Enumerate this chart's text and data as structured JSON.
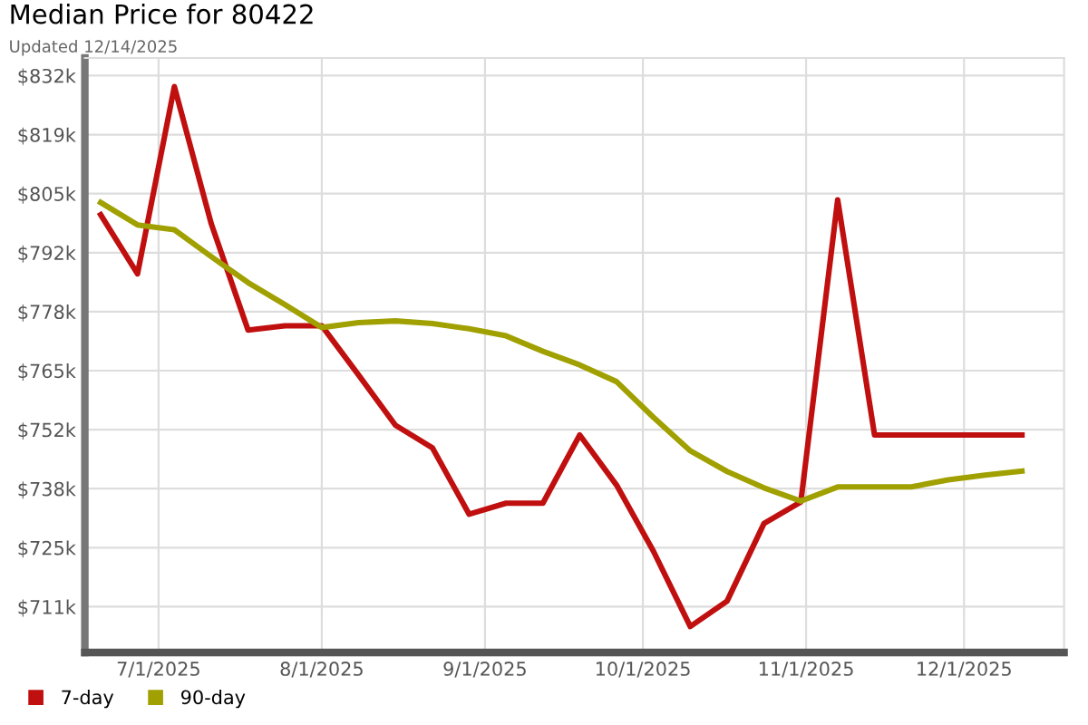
{
  "chart_data": {
    "type": "line",
    "title": "Median Price for 80422",
    "subtitle": "Updated 12/14/2025",
    "x": [
      "2025-06-20",
      "2025-06-27",
      "2025-07-04",
      "2025-07-11",
      "2025-07-18",
      "2025-07-25",
      "2025-08-01",
      "2025-08-08",
      "2025-08-15",
      "2025-08-22",
      "2025-08-29",
      "2025-09-05",
      "2025-09-12",
      "2025-09-19",
      "2025-09-26",
      "2025-10-03",
      "2025-10-10",
      "2025-10-17",
      "2025-10-24",
      "2025-10-31",
      "2025-11-07",
      "2025-11-14",
      "2025-11-21",
      "2025-11-28",
      "2025-12-05",
      "2025-12-12"
    ],
    "series": [
      {
        "name": "7-day",
        "color": "#c00f0f",
        "values": [
          800.4,
          787.0,
          829.5,
          798.4,
          774.2,
          775.2,
          775.2,
          764.0,
          752.6,
          747.5,
          732.4,
          734.9,
          734.9,
          750.4,
          739.0,
          724.0,
          706.9,
          712.7,
          730.3,
          735.2,
          803.8,
          750.4,
          750.4,
          750.4,
          750.4,
          750.4
        ]
      },
      {
        "name": "90-day",
        "color": "#a0a000",
        "values": [
          803.2,
          798.1,
          797.0,
          790.9,
          785.0,
          780.0,
          774.8,
          775.9,
          776.3,
          775.7,
          774.5,
          772.9,
          769.4,
          766.3,
          762.5,
          754.4,
          746.8,
          742.1,
          738.4,
          735.4,
          738.6,
          738.6,
          738.6,
          740.2,
          741.3,
          742.2
        ]
      }
    ],
    "xlim": [
      "2025-06-17",
      "2025-12-20"
    ],
    "xticks": [
      {
        "value": "2025-07-01",
        "label": "7/1/2025"
      },
      {
        "value": "2025-08-01",
        "label": "8/1/2025"
      },
      {
        "value": "2025-09-01",
        "label": "9/1/2025"
      },
      {
        "value": "2025-10-01",
        "label": "10/1/2025"
      },
      {
        "value": "2025-11-01",
        "label": "11/1/2025"
      },
      {
        "value": "2025-12-01",
        "label": "12/1/2025"
      }
    ],
    "ylim": [
      701,
      836
    ],
    "yticks": [
      {
        "value": 711.4,
        "label": "$711k"
      },
      {
        "value": 724.8,
        "label": "$725k"
      },
      {
        "value": 738.2,
        "label": "$738k"
      },
      {
        "value": 751.6,
        "label": "$752k"
      },
      {
        "value": 765.0,
        "label": "$765k"
      },
      {
        "value": 778.4,
        "label": "$778k"
      },
      {
        "value": 791.8,
        "label": "$792k"
      },
      {
        "value": 805.2,
        "label": "$805k"
      },
      {
        "value": 818.6,
        "label": "$819k"
      },
      {
        "value": 832.0,
        "label": "$832k"
      }
    ],
    "grid": true,
    "legend": "bottom left",
    "marker": "none",
    "line_style": "solid"
  }
}
